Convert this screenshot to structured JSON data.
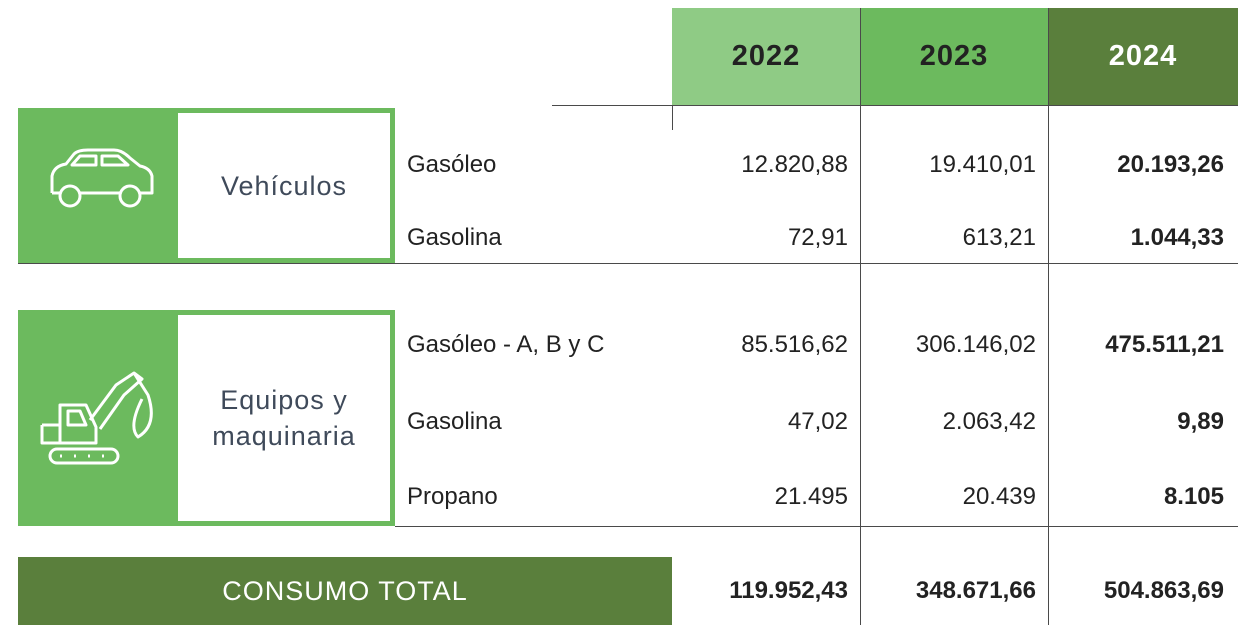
{
  "table": {
    "columns": [
      "2022",
      "2023",
      "2024"
    ],
    "groups": [
      {
        "label": "Vehículos",
        "rows": [
          {
            "name": "Gasóleo",
            "values": [
              "12.820,88",
              "19.410,01",
              "20.193,26"
            ]
          },
          {
            "name": "Gasolina",
            "values": [
              "72,91",
              "613,21",
              "1.044,33"
            ]
          }
        ]
      },
      {
        "label": "Equipos y maquinaria",
        "rows": [
          {
            "name": "Gasóleo - A, B y C",
            "values": [
              "85.516,62",
              "306.146,02",
              "475.511,21"
            ]
          },
          {
            "name": "Gasolina",
            "values": [
              "47,02",
              "2.063,42",
              "9,89"
            ]
          },
          {
            "name": "Propano",
            "values": [
              "21.495",
              "20.439",
              "8.105"
            ]
          }
        ]
      }
    ],
    "total": {
      "label": "CONSUMO TOTAL",
      "values": [
        "119.952,43",
        "348.671,66",
        "504.863,69"
      ]
    }
  }
}
